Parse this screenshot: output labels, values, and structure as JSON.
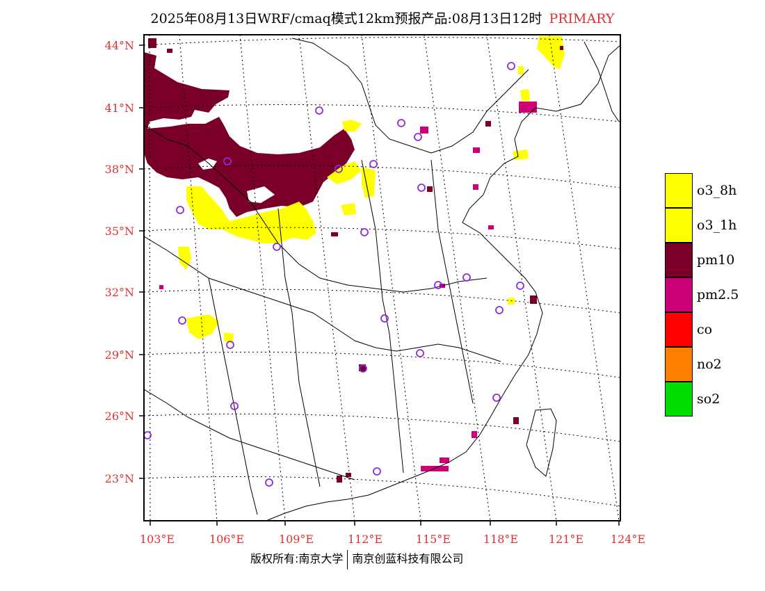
{
  "title": {
    "text": "2025年08月13日WRF/cmaq模式12km预报产品:08月13日12时",
    "tag": "PRIMARY"
  },
  "axes": {
    "lat_labels": [
      "44°N",
      "41°N",
      "38°N",
      "35°N",
      "32°N",
      "29°N",
      "26°N",
      "23°N"
    ],
    "lon_labels": [
      "103°E",
      "106°E",
      "109°E",
      "112°E",
      "115°E",
      "118°E",
      "121°E",
      "124°E"
    ]
  },
  "legend": [
    {
      "label": "o3_8h",
      "color": "#ffff00"
    },
    {
      "label": "o3_1h",
      "color": "#ffff00"
    },
    {
      "label": "pm10",
      "color": "#7a0028"
    },
    {
      "label": "pm2.5",
      "color": "#cc0077"
    },
    {
      "label": "co",
      "color": "#ff0000"
    },
    {
      "label": "no2",
      "color": "#ff8000"
    },
    {
      "label": "so2",
      "color": "#00dd00"
    }
  ],
  "colors": {
    "pm10": "#7a0028",
    "pm25": "#cc0077",
    "o3": "#ffff00",
    "city_marker": "#8a2be2",
    "label_red": "#e03030"
  },
  "footer": {
    "left": "版权所有:南京大学",
    "right": "南京创蓝科技有限公司"
  }
}
